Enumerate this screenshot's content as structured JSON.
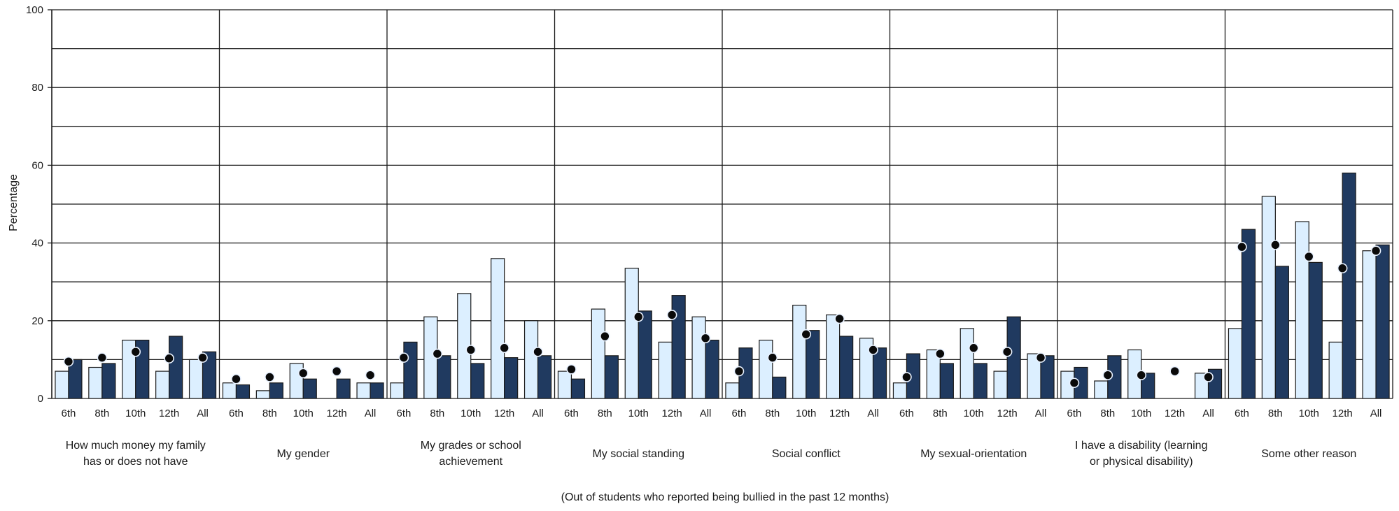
{
  "chart_data": {
    "type": "bar",
    "title": "",
    "ylabel": "Percentage",
    "xlabel": "(Out of students who reported being bullied in the past 12 months)",
    "ylim": [
      0,
      100
    ],
    "yticks": [
      0,
      20,
      40,
      60,
      80,
      100
    ],
    "grid": true,
    "colors": {
      "light": "#dcefff",
      "dark": "#203a60",
      "marker": "#0a0a0a",
      "line": "#1a1a1a"
    },
    "categories": [
      "6th",
      "8th",
      "10th",
      "12th",
      "All"
    ],
    "groups": [
      {
        "label_lines": [
          "How much money my family",
          "has or does not have"
        ],
        "light": [
          7,
          8,
          15,
          7,
          10
        ],
        "dark": [
          10,
          9,
          15,
          16,
          12
        ],
        "marker": [
          9.5,
          10.5,
          12,
          10.3,
          10.5
        ]
      },
      {
        "label_lines": [
          "My gender"
        ],
        "light": [
          4,
          2,
          9,
          0,
          4
        ],
        "dark": [
          3.5,
          4,
          5,
          5,
          4
        ],
        "marker": [
          5,
          5.5,
          6.5,
          7,
          6
        ]
      },
      {
        "label_lines": [
          "My grades or school",
          "achievement"
        ],
        "light": [
          4,
          21,
          27,
          36,
          20
        ],
        "dark": [
          14.5,
          11,
          9,
          10.5,
          11
        ],
        "marker": [
          10.5,
          11.5,
          12.5,
          13,
          12
        ]
      },
      {
        "label_lines": [
          "My social standing"
        ],
        "light": [
          7,
          23,
          33.5,
          14.5,
          21
        ],
        "dark": [
          5,
          11,
          22.5,
          26.5,
          15
        ],
        "marker": [
          7.5,
          16,
          21,
          21.5,
          15.5
        ]
      },
      {
        "label_lines": [
          "Social conflict"
        ],
        "light": [
          4,
          15,
          24,
          21.5,
          15.5
        ],
        "dark": [
          13,
          5.5,
          17.5,
          16,
          13
        ],
        "marker": [
          7,
          10.5,
          16.5,
          20.5,
          12.5
        ]
      },
      {
        "label_lines": [
          "My sexual-orientation"
        ],
        "light": [
          4,
          12.5,
          18,
          7,
          11.5
        ],
        "dark": [
          11.5,
          9,
          9,
          21,
          11
        ],
        "marker": [
          5.5,
          11.5,
          13,
          12,
          10.5
        ]
      },
      {
        "label_lines": [
          "I have a disability (learning",
          "or physical disability)"
        ],
        "light": [
          7,
          4.5,
          12.5,
          0,
          6.5
        ],
        "dark": [
          8,
          11,
          6.5,
          0,
          7.5
        ],
        "marker": [
          4,
          6,
          6,
          7,
          5.5
        ]
      },
      {
        "label_lines": [
          "Some other reason"
        ],
        "light": [
          18,
          52,
          45.5,
          14.5,
          38
        ],
        "dark": [
          43.5,
          34,
          35,
          58,
          39.5
        ],
        "marker": [
          39,
          39.5,
          36.5,
          33.5,
          38
        ]
      }
    ]
  }
}
